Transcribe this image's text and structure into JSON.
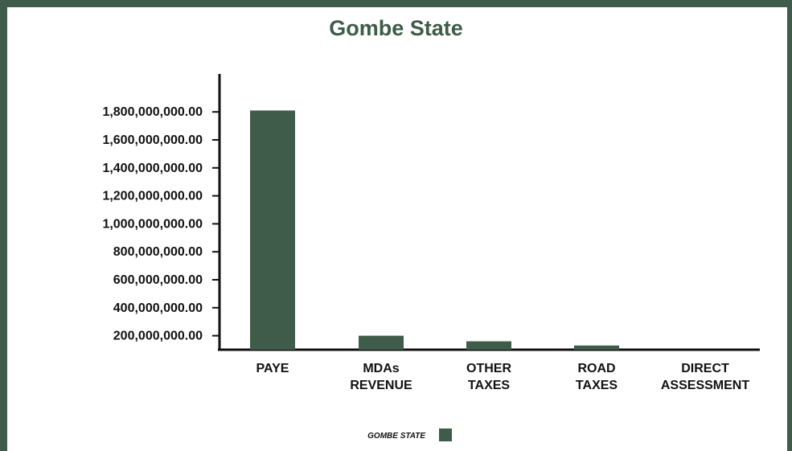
{
  "colors": {
    "frame": "#3e5c49",
    "bar": "#3e5c49",
    "title": "#3e5c49",
    "text": "#111111"
  },
  "chart_data": {
    "type": "bar",
    "title": "Gombe State",
    "xlabel": "",
    "ylabel": "",
    "categories": [
      "PAYE",
      "MDAs REVENUE",
      "OTHER TAXES",
      "ROAD TAXES",
      "DIRECT ASSESSMENT"
    ],
    "category_lines": [
      [
        "PAYE"
      ],
      [
        "MDAs",
        "REVENUE"
      ],
      [
        "OTHER",
        "TAXES"
      ],
      [
        "ROAD",
        "TAXES"
      ],
      [
        "DIRECT",
        "ASSESSMENT"
      ]
    ],
    "series": [
      {
        "name": "GOMBE STATE",
        "values": [
          1810000000,
          200000000,
          160000000,
          130000000,
          0
        ]
      }
    ],
    "ylim": [
      100000000,
      1900000000
    ],
    "yticks": [
      200000000,
      400000000,
      600000000,
      800000000,
      1000000000,
      1200000000,
      1400000000,
      1600000000,
      1800000000
    ],
    "ytick_labels": [
      "200,000,000.00",
      "400,000,000.00",
      "600,000,000.00",
      "800,000,000.00",
      "1,000,000,000.00",
      "1,200,000,000.00",
      "1,400,000,000.00",
      "1,600,000,000.00",
      "1,800,000,000.00"
    ],
    "grid": false,
    "legend": "bottom-center"
  }
}
